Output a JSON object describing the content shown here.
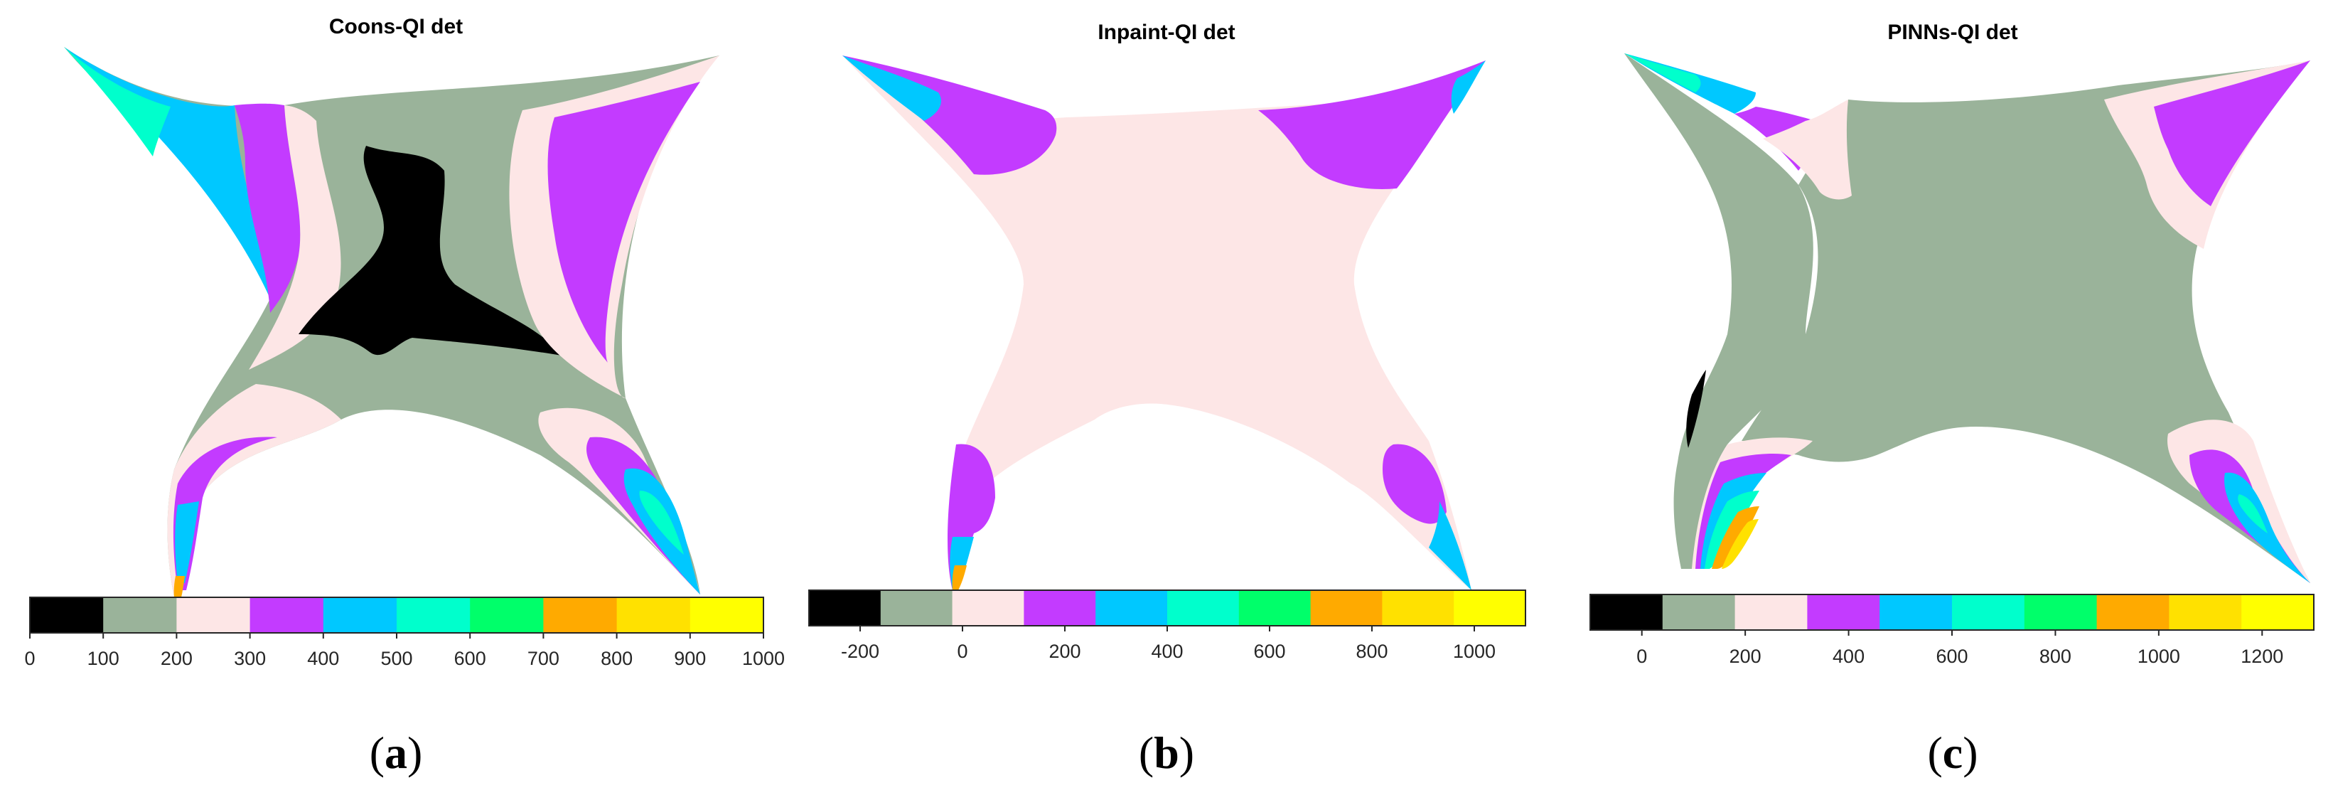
{
  "chart_data": [
    {
      "type": "heatmap",
      "title": "Coons-QI det",
      "caption": "a",
      "colorbar": {
        "colors": [
          "#000000",
          "#9ab39a",
          "#fde6e6",
          "#c33bff",
          "#00c8ff",
          "#00ffcc",
          "#00ff6a",
          "#ffaa00",
          "#ffe100",
          "#ffff00"
        ],
        "ticks": [
          "0",
          "100",
          "200",
          "300",
          "400",
          "500",
          "600",
          "700",
          "800",
          "900",
          "1000"
        ],
        "range": [
          0,
          1000
        ]
      }
    },
    {
      "type": "heatmap",
      "title": "Inpaint-QI det",
      "caption": "b",
      "colorbar": {
        "colors": [
          "#000000",
          "#9ab39a",
          "#fde6e6",
          "#c33bff",
          "#00c8ff",
          "#00ffcc",
          "#00ff6a",
          "#ffaa00",
          "#ffe100",
          "#ffff00"
        ],
        "ticks": [
          "-200",
          "0",
          "200",
          "400",
          "600",
          "800",
          "1000"
        ],
        "range": [
          -300,
          1100
        ]
      }
    },
    {
      "type": "heatmap",
      "title": "PINNs-QI det",
      "caption": "c",
      "colorbar": {
        "colors": [
          "#000000",
          "#9ab39a",
          "#fde6e6",
          "#c33bff",
          "#00c8ff",
          "#00ffcc",
          "#00ff6a",
          "#ffaa00",
          "#ffe100",
          "#ffff00"
        ],
        "ticks": [
          "0",
          "200",
          "400",
          "600",
          "800",
          "1000",
          "1200"
        ],
        "range": [
          -100,
          1300
        ]
      }
    }
  ]
}
